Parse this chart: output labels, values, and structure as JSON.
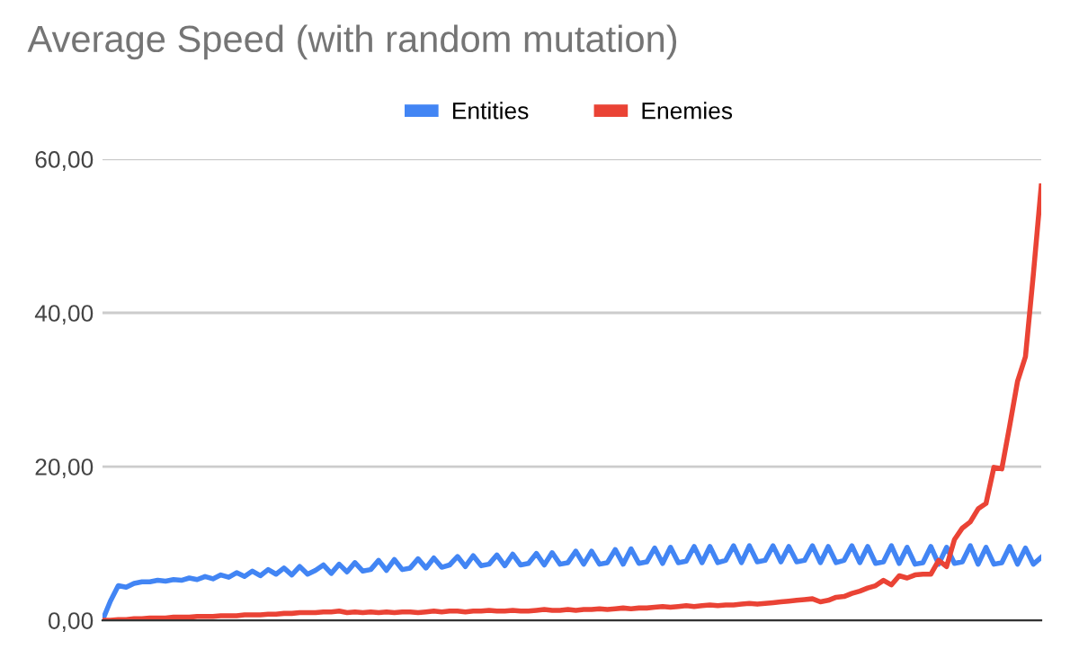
{
  "chart_data": {
    "type": "line",
    "title": "Average Speed (with random mutation)",
    "categories": [
      null,
      null,
      null,
      null,
      null,
      null,
      null,
      null,
      null,
      null,
      null,
      null,
      null,
      null,
      null,
      null,
      null,
      null,
      null,
      null,
      null,
      null,
      null,
      null,
      null,
      null,
      null,
      null,
      null,
      null,
      null,
      null,
      null,
      null,
      null,
      null,
      null,
      null,
      null,
      null,
      null,
      null,
      null,
      null,
      null,
      null,
      null,
      null,
      null,
      null,
      null,
      null,
      null,
      null,
      null,
      null,
      null,
      null,
      null,
      null,
      null,
      null,
      null,
      null,
      null,
      null,
      null,
      null,
      null,
      null,
      null,
      null,
      null,
      null,
      null,
      null,
      null,
      null,
      null,
      null,
      null,
      null,
      null,
      null,
      null,
      null,
      null,
      null,
      null,
      null,
      null,
      null,
      null,
      null,
      null,
      null,
      null,
      null,
      null,
      null,
      null,
      null,
      null,
      null,
      null,
      null,
      null,
      null,
      null,
      null,
      null,
      null,
      null,
      null,
      null,
      null,
      null,
      null,
      null,
      null
    ],
    "series": [
      {
        "name": "Entities",
        "color": "#4285f4",
        "values": [
          0,
          2.5,
          4.5,
          4.3,
          4.8,
          5.0,
          5.0,
          5.2,
          5.1,
          5.3,
          5.2,
          5.5,
          5.3,
          5.7,
          5.4,
          5.9,
          5.6,
          6.2,
          5.7,
          6.4,
          5.8,
          6.6,
          6.0,
          6.8,
          5.9,
          7.0,
          6.0,
          6.5,
          7.2,
          6.1,
          7.3,
          6.3,
          7.5,
          6.4,
          6.6,
          7.8,
          6.5,
          7.9,
          6.6,
          6.8,
          8.0,
          6.8,
          8.1,
          6.9,
          7.2,
          8.3,
          7.0,
          8.4,
          7.1,
          7.3,
          8.5,
          7.1,
          8.6,
          7.2,
          7.4,
          8.7,
          7.2,
          8.8,
          7.3,
          7.5,
          9.0,
          7.3,
          9.0,
          7.3,
          7.5,
          9.2,
          7.3,
          9.3,
          7.4,
          7.6,
          9.4,
          7.4,
          9.5,
          7.5,
          7.7,
          9.6,
          7.5,
          9.6,
          7.5,
          7.8,
          9.7,
          7.5,
          9.7,
          7.6,
          7.8,
          9.7,
          7.6,
          9.6,
          7.6,
          7.8,
          9.7,
          7.5,
          9.6,
          7.5,
          7.8,
          9.7,
          7.5,
          9.6,
          7.4,
          7.6,
          9.7,
          7.4,
          9.5,
          7.3,
          7.5,
          9.6,
          7.3,
          9.5,
          7.4,
          7.6,
          9.7,
          7.3,
          9.5,
          7.3,
          7.5,
          9.6,
          7.3,
          9.4,
          7.3,
          8.2
        ]
      },
      {
        "name": "Enemies",
        "color": "#ea4335",
        "values": [
          0,
          0,
          0.1,
          0.1,
          0.2,
          0.2,
          0.3,
          0.3,
          0.3,
          0.4,
          0.4,
          0.4,
          0.5,
          0.5,
          0.5,
          0.6,
          0.6,
          0.6,
          0.7,
          0.7,
          0.7,
          0.8,
          0.8,
          0.9,
          0.9,
          1.0,
          1.0,
          1.0,
          1.1,
          1.1,
          1.2,
          1.0,
          1.1,
          1.0,
          1.1,
          1.0,
          1.1,
          1.0,
          1.1,
          1.1,
          1.0,
          1.1,
          1.2,
          1.1,
          1.2,
          1.2,
          1.1,
          1.2,
          1.2,
          1.3,
          1.2,
          1.2,
          1.3,
          1.2,
          1.2,
          1.3,
          1.4,
          1.3,
          1.3,
          1.4,
          1.3,
          1.4,
          1.4,
          1.5,
          1.4,
          1.5,
          1.6,
          1.5,
          1.6,
          1.6,
          1.7,
          1.8,
          1.7,
          1.8,
          1.9,
          1.8,
          1.9,
          2.0,
          1.9,
          2.0,
          2.0,
          2.1,
          2.2,
          2.1,
          2.2,
          2.3,
          2.4,
          2.5,
          2.6,
          2.7,
          2.8,
          2.4,
          2.6,
          3.0,
          3.1,
          3.5,
          3.8,
          4.2,
          4.5,
          5.2,
          4.6,
          5.8,
          5.5,
          5.9,
          6.0,
          6.0,
          7.8,
          7.0,
          10.5,
          12.0,
          12.8,
          14.5,
          15.2,
          19.9,
          19.7,
          25.3,
          31.1,
          34.3,
          45,
          56.5
        ]
      }
    ],
    "ylim": [
      0,
      60
    ],
    "yticks": [
      {
        "value": 0,
        "label": "0,00"
      },
      {
        "value": 20,
        "label": "20,00"
      },
      {
        "value": 40,
        "label": "40,00"
      },
      {
        "value": 60,
        "label": "60,00"
      }
    ],
    "grid": "y",
    "legend": "top",
    "marker": "none",
    "line_style": "solid"
  }
}
